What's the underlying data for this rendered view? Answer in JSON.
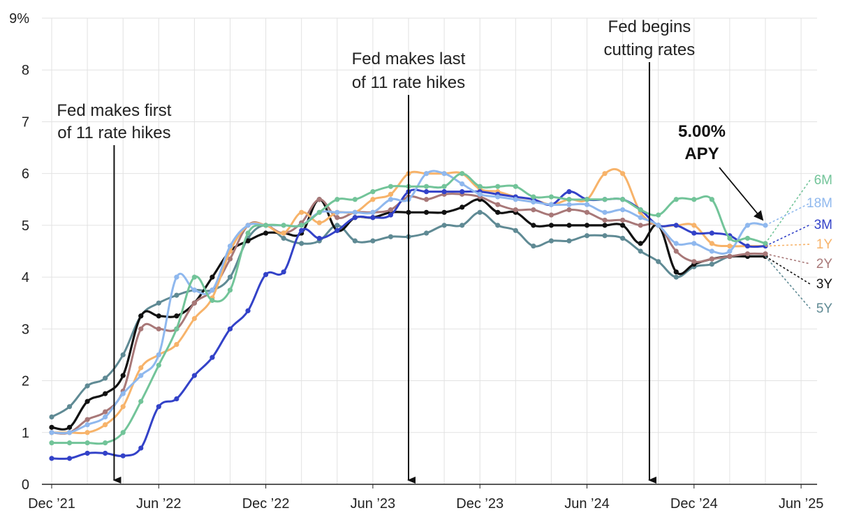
{
  "chart_data": {
    "type": "line",
    "title": "",
    "xlabel": "",
    "ylabel": "",
    "ylim": [
      0,
      9
    ],
    "y_ticks": [
      "0",
      "1",
      "2",
      "3",
      "4",
      "5",
      "6",
      "7",
      "8",
      "9%"
    ],
    "x_tick_labels": [
      "Dec ’21",
      "Jun ’22",
      "Dec ’22",
      "Jun ’23",
      "Dec ’23",
      "Jun ’24",
      "Dec ’24",
      "Jun ’25"
    ],
    "x_start": "2021-12",
    "x_unit": "months since Dec 2021",
    "grid": true,
    "legend_placement": "right",
    "series": [
      {
        "name": "5Y",
        "color": "#5f8a94",
        "values": [
          1.3,
          1.5,
          1.9,
          2.05,
          2.5,
          3.25,
          3.5,
          3.65,
          3.75,
          3.75,
          4.0,
          4.75,
          5.0,
          4.75,
          4.65,
          4.7,
          5.0,
          4.7,
          4.7,
          4.78,
          4.78,
          4.85,
          5.0,
          5.0,
          5.25,
          5.0,
          4.9,
          4.6,
          4.7,
          4.7,
          4.8,
          4.8,
          4.75,
          4.5,
          4.3,
          4.0,
          4.2,
          4.25,
          4.4,
          4.4,
          4.4
        ]
      },
      {
        "name": "3Y",
        "color": "#111111",
        "values": [
          1.1,
          1.1,
          1.6,
          1.75,
          2.1,
          3.25,
          3.25,
          3.25,
          3.5,
          4.0,
          4.5,
          4.7,
          4.85,
          4.85,
          4.85,
          5.5,
          4.9,
          5.15,
          5.15,
          5.25,
          5.25,
          5.25,
          5.25,
          5.35,
          5.5,
          5.25,
          5.25,
          5.0,
          5.0,
          5.0,
          5.0,
          5.0,
          5.0,
          4.65,
          5.0,
          4.1,
          4.25,
          4.35,
          4.4,
          4.4,
          4.4
        ]
      },
      {
        "name": "2Y",
        "color": "#a87878",
        "values": [
          1.0,
          1.0,
          1.25,
          1.4,
          1.8,
          3.0,
          3.0,
          3.0,
          3.5,
          3.75,
          4.35,
          5.0,
          5.0,
          4.85,
          5.05,
          5.5,
          5.15,
          5.25,
          5.25,
          5.3,
          5.55,
          5.5,
          5.6,
          5.6,
          5.55,
          5.4,
          5.3,
          5.3,
          5.2,
          5.3,
          5.25,
          5.1,
          5.1,
          5.0,
          5.0,
          4.5,
          4.3,
          4.35,
          4.4,
          4.45,
          4.45
        ]
      },
      {
        "name": "1Y",
        "color": "#f7b36a",
        "values": [
          1.0,
          1.0,
          1.0,
          1.15,
          1.5,
          2.25,
          2.5,
          2.7,
          3.2,
          3.6,
          4.5,
          5.0,
          5.0,
          4.85,
          5.25,
          5.05,
          5.25,
          5.25,
          5.5,
          5.6,
          6.0,
          6.0,
          6.0,
          6.0,
          5.7,
          5.65,
          5.55,
          5.5,
          5.4,
          5.5,
          5.5,
          6.0,
          6.0,
          5.25,
          5.0,
          5.0,
          5.0,
          4.65,
          4.6,
          4.6,
          4.6
        ]
      },
      {
        "name": "3M",
        "color": "#3342c8",
        "values": [
          0.5,
          0.5,
          0.6,
          0.6,
          0.55,
          0.7,
          1.5,
          1.65,
          2.1,
          2.45,
          3.0,
          3.35,
          4.05,
          4.1,
          4.9,
          4.75,
          4.9,
          5.15,
          5.15,
          5.2,
          5.65,
          5.65,
          5.65,
          5.65,
          5.65,
          5.6,
          5.55,
          5.5,
          5.4,
          5.65,
          5.5,
          5.5,
          5.5,
          5.3,
          5.0,
          5.0,
          4.85,
          4.85,
          4.8,
          4.6,
          4.6
        ]
      },
      {
        "name": "18M",
        "color": "#8fb8ee",
        "values": [
          1.0,
          1.0,
          1.15,
          1.3,
          1.75,
          2.1,
          2.5,
          4.0,
          3.75,
          3.75,
          4.6,
          5.0,
          5.0,
          5.0,
          5.0,
          5.25,
          5.25,
          5.25,
          5.25,
          5.5,
          5.5,
          6.0,
          6.0,
          5.8,
          5.6,
          5.55,
          5.5,
          5.45,
          5.4,
          5.4,
          5.4,
          5.25,
          5.3,
          5.15,
          5.0,
          4.65,
          4.65,
          4.5,
          4.5,
          5.0,
          5.0
        ]
      },
      {
        "name": "6M",
        "color": "#72c499",
        "values": [
          0.8,
          0.8,
          0.8,
          0.8,
          1.0,
          1.6,
          2.3,
          3.0,
          4.0,
          3.55,
          3.75,
          4.85,
          5.0,
          5.0,
          5.0,
          5.25,
          5.5,
          5.5,
          5.65,
          5.75,
          5.75,
          5.75,
          5.75,
          6.0,
          5.75,
          5.75,
          5.75,
          5.55,
          5.55,
          5.5,
          5.5,
          5.5,
          5.5,
          5.3,
          5.2,
          5.5,
          5.5,
          5.5,
          4.75,
          4.75,
          4.65
        ]
      }
    ],
    "annotations": [
      {
        "lines": [
          "Fed makes first",
          "of 11 rate hikes"
        ],
        "x_month": 3.5
      },
      {
        "lines": [
          "Fed makes last",
          "of 11 rate hikes"
        ],
        "x_month": 20
      },
      {
        "lines": [
          "Fed begins",
          "cutting rates"
        ],
        "x_month": 33.5
      }
    ],
    "callout": {
      "lines": [
        "5.00%",
        "APY"
      ],
      "x_month": 40,
      "y": 5.0
    }
  }
}
